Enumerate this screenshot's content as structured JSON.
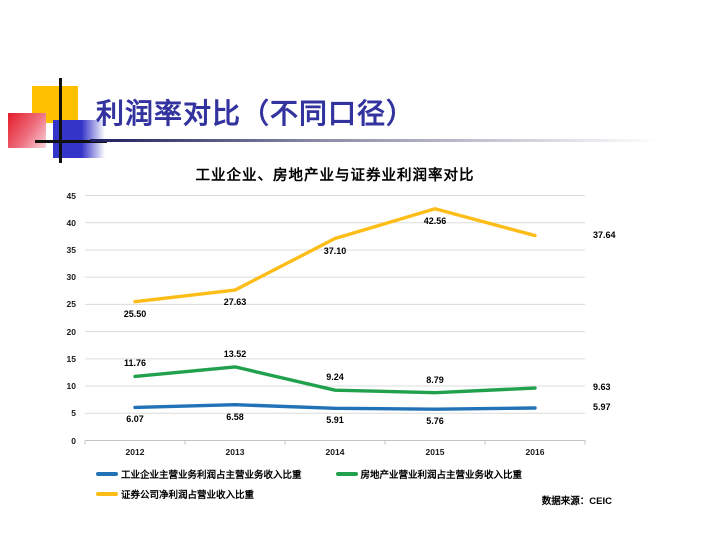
{
  "slide": {
    "title": "利润率对比（不同口径）",
    "title_color": "#3333A0",
    "source_note": "数据来源：CEIC"
  },
  "chart_data": {
    "type": "line",
    "title": "工业企业、房地产业与证券业利润率对比",
    "categories": [
      "2012",
      "2013",
      "2014",
      "2015",
      "2016"
    ],
    "series": [
      {
        "name": "工业企业主营业务利润占主营业务收入比重",
        "color": "#2272B8",
        "values": [
          6.07,
          6.58,
          5.91,
          5.76,
          5.97
        ]
      },
      {
        "name": "房地产业营业利润占主营业务收入比重",
        "color": "#21A14D",
        "values": [
          11.76,
          13.52,
          9.24,
          8.79,
          9.63
        ]
      },
      {
        "name": "证券公司净利润占营业收入比重",
        "color": "#FCBD18",
        "values": [
          25.5,
          27.63,
          37.1,
          42.56,
          37.64
        ]
      }
    ],
    "ylim": [
      0,
      45
    ],
    "ytick_step": 5,
    "grid": true,
    "legend_position": "bottom",
    "data_labels": true,
    "xlabel": "",
    "ylabel": ""
  }
}
